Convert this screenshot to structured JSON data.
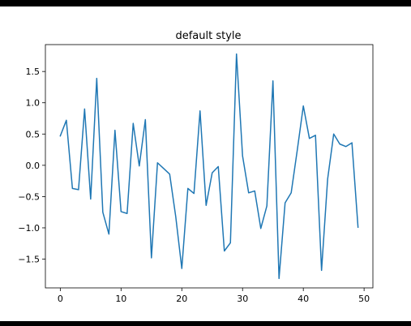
{
  "chart_data": {
    "type": "line",
    "title": "default style",
    "xlabel": "",
    "ylabel": "",
    "xlim": [
      -2.45,
      51.45
    ],
    "ylim": [
      -1.96,
      1.93
    ],
    "grid": false,
    "legend": "none",
    "xticks": [
      0,
      10,
      20,
      30,
      40,
      50
    ],
    "xtick_labels": [
      "0",
      "10",
      "20",
      "30",
      "40",
      "50"
    ],
    "yticks": [
      -1.5,
      -1.0,
      -0.5,
      0.0,
      0.5,
      1.0,
      1.5
    ],
    "ytick_labels": [
      "−1.5",
      "−1.0",
      "−0.5",
      "0.0",
      "0.5",
      "1.0",
      "1.5"
    ],
    "series": [
      {
        "color": "#1f77b4",
        "x": [
          0,
          1,
          2,
          3,
          4,
          5,
          6,
          7,
          8,
          9,
          10,
          11,
          12,
          13,
          14,
          15,
          16,
          17,
          18,
          19,
          20,
          21,
          22,
          23,
          24,
          25,
          26,
          27,
          28,
          29,
          30,
          31,
          32,
          33,
          34,
          35,
          36,
          37,
          38,
          39,
          40,
          41,
          42,
          43,
          44,
          45,
          46,
          47,
          48,
          49
        ],
        "values": [
          0.47,
          0.72,
          -0.37,
          -0.39,
          0.9,
          -0.54,
          1.39,
          -0.75,
          -1.1,
          0.56,
          -0.74,
          -0.77,
          0.67,
          -0.01,
          0.73,
          -1.48,
          0.04,
          -0.05,
          -0.14,
          -0.82,
          -1.65,
          -0.37,
          -0.45,
          0.87,
          -0.64,
          -0.12,
          -0.02,
          -1.37,
          -1.24,
          1.78,
          0.15,
          -0.44,
          -0.41,
          -1.01,
          -0.65,
          1.35,
          -1.81,
          -0.6,
          -0.44,
          0.24,
          0.95,
          0.43,
          0.48,
          -1.68,
          -0.22,
          0.5,
          0.34,
          0.3,
          0.36,
          -0.99
        ]
      }
    ]
  }
}
